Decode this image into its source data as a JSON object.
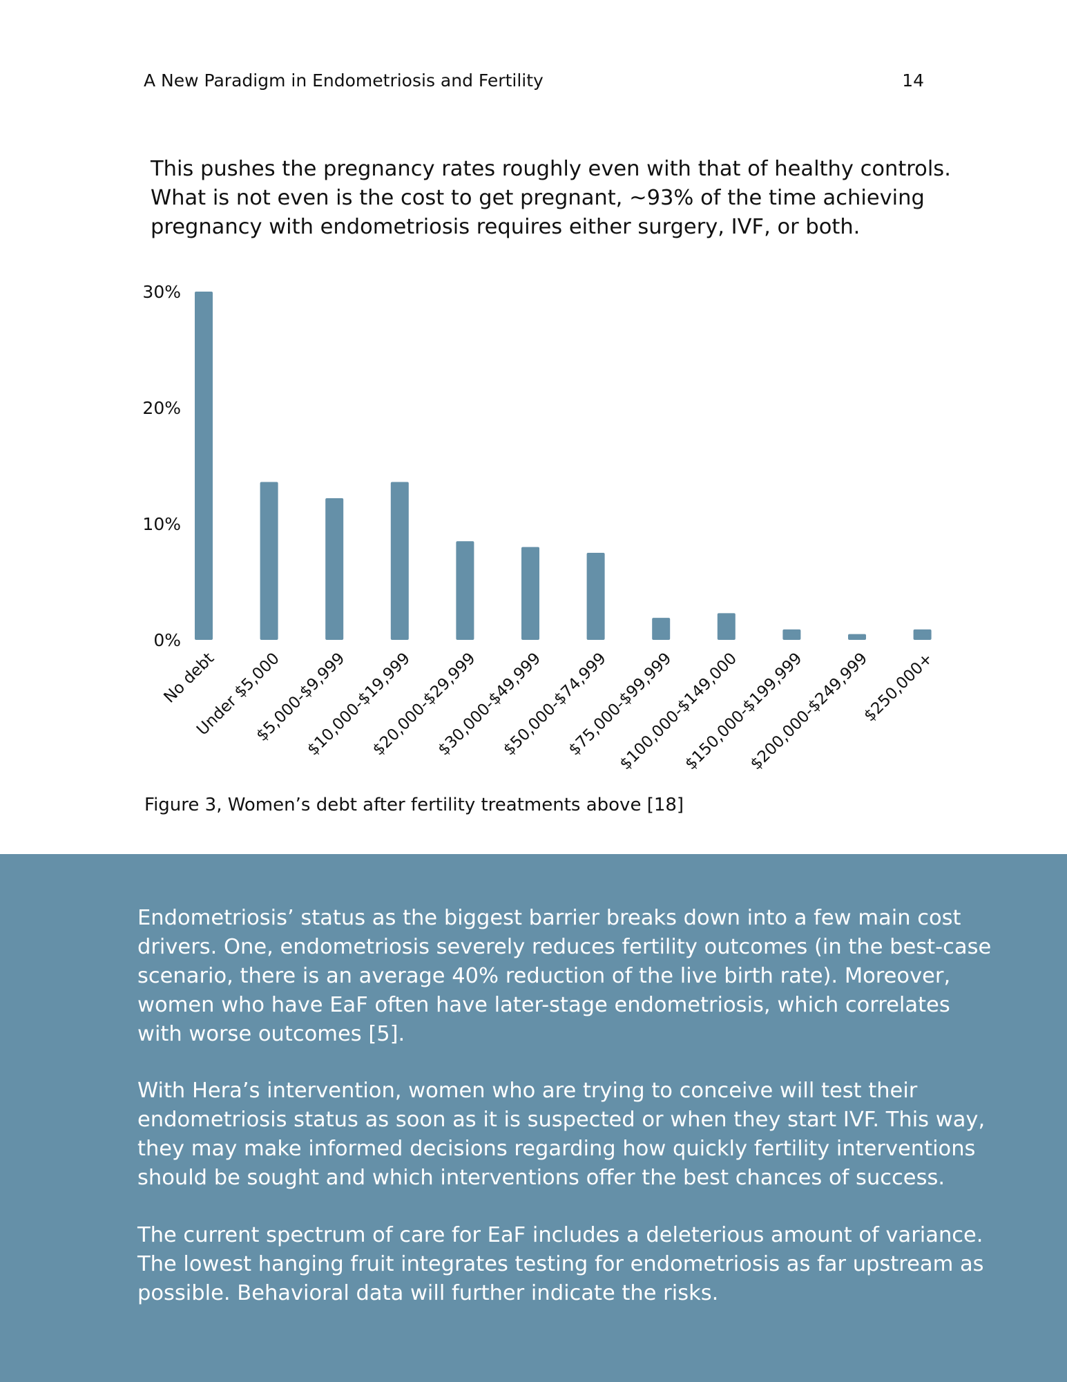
{
  "header": {
    "running_title": "A New Paradigm in Endometriosis and Fertility",
    "page_number": "14"
  },
  "intro_lines": [
    "This pushes the pregnancy rates roughly even with that of healthy controls.",
    "What is not even is the cost to get pregnant, ~93% of the time achieving",
    "pregnancy with endometriosis requires either surgery, IVF, or both."
  ],
  "chart_data": {
    "type": "bar",
    "title": "",
    "xlabel": "",
    "ylabel": "",
    "ylim": [
      0,
      30
    ],
    "yticks": [
      "0%",
      "10%",
      "20%",
      "30%"
    ],
    "grid": false,
    "bar_color": "#6590a8",
    "categories": [
      "No debt",
      "Under $5,000",
      "$5,000-$9,999",
      "$10,000-$19,999",
      "$20,000-$29,999",
      "$30,000-$49,999",
      "$50,000-$74,999",
      "$75,000-$99,999",
      "$100,000-$149,000",
      "$150,000-$199,999",
      "$200,000-$249,999",
      "$250,000+"
    ],
    "values": [
      30,
      13.6,
      12.2,
      13.6,
      8.5,
      8.0,
      7.5,
      1.9,
      2.3,
      0.9,
      0.5,
      0.9
    ]
  },
  "caption": "Figure 3, Women’s debt after fertility treatments above [18]",
  "band": {
    "background": "#6590a8",
    "paragraphs": [
      {
        "lines": [
          "Endometriosis’ status as the biggest barrier breaks down into a few main cost",
          "drivers. One, endometriosis severely reduces fertility outcomes (in the best-case",
          "scenario, there is an average 40% reduction of the live birth rate). Moreover,",
          "women who have EaF often have later-stage endometriosis, which correlates",
          "with worse outcomes [5]."
        ]
      },
      {
        "lines": [
          "With Hera’s intervention, women who are trying to conceive will test their",
          "endometriosis status as soon as it is suspected or when they start IVF. This way,",
          "they may make informed decisions regarding how quickly fertility interventions",
          "should be sought and which interventions offer the best chances of success."
        ]
      },
      {
        "lines": [
          "The current spectrum of care for EaF includes a deleterious amount of variance.",
          "The lowest hanging fruit integrates testing for endometriosis as far upstream as",
          "possible. Behavioral data will further indicate the risks."
        ]
      }
    ]
  }
}
